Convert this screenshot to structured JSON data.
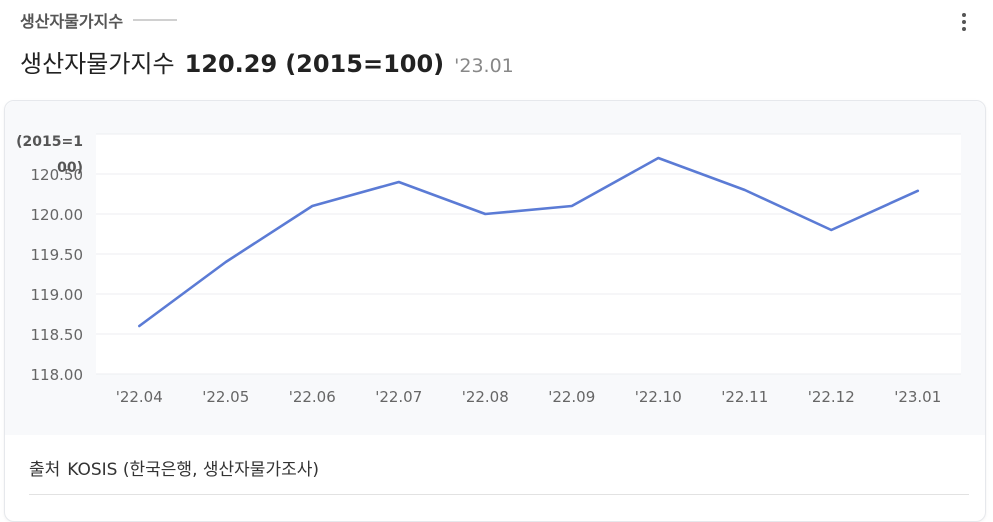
{
  "header": {
    "section_title": "생산자물가지수",
    "title": "생산자물가지수",
    "value": "120.29",
    "base": "(2015=100)",
    "period": "'23.01"
  },
  "chart_data": {
    "type": "line",
    "title": "",
    "ylabel_lines": [
      "(2015=1",
      "00)"
    ],
    "categories": [
      "'22.04",
      "'22.05",
      "'22.06",
      "'22.07",
      "'22.08",
      "'22.09",
      "'22.10",
      "'22.11",
      "'22.12",
      "'23.01"
    ],
    "series": [
      {
        "values": [
          118.6,
          119.4,
          120.1,
          120.4,
          120.0,
          120.1,
          120.7,
          120.3,
          119.8,
          120.29
        ]
      }
    ],
    "yticks": [
      "118.00",
      "118.50",
      "119.00",
      "119.50",
      "120.00",
      "120.50"
    ],
    "ylim": [
      118.0,
      121.0
    ],
    "grid": true,
    "line_color": "#5b7bd5"
  },
  "footer": {
    "source_label": "출처",
    "source_text": "KOSIS (한국은행, 생산자물가조사)"
  }
}
